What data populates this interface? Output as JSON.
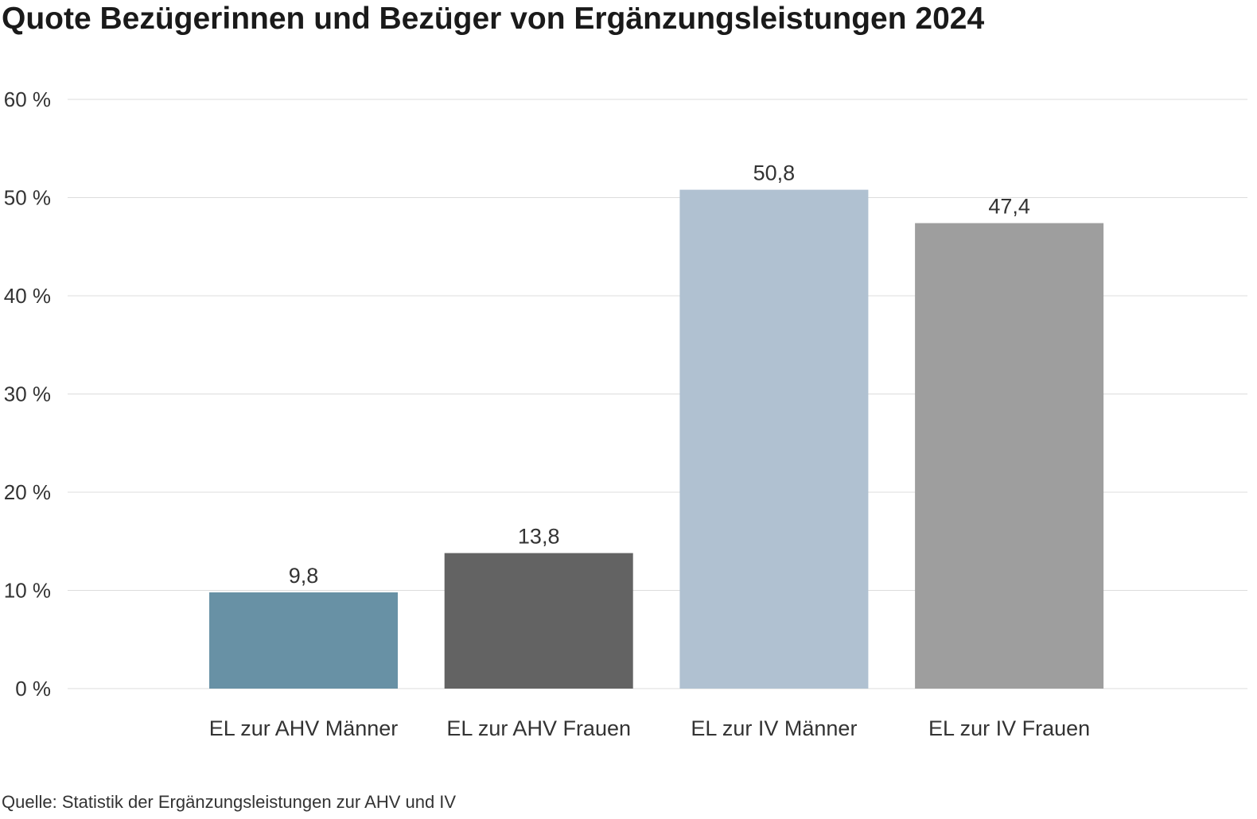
{
  "chart_data": {
    "type": "bar",
    "title": "Quote Bezügerinnen und Bezüger von Ergänzungsleistungen 2024",
    "source": "Quelle: Statistik der Ergänzungsleistungen zur AHV und IV",
    "categories": [
      "EL zur AHV Männer",
      "EL zur AHV Frauen",
      "EL zur IV Männer",
      "EL zur IV Frauen"
    ],
    "values": [
      9.8,
      13.8,
      50.8,
      47.4
    ],
    "value_labels": [
      "9,8",
      "13,8",
      "50,8",
      "47,4"
    ],
    "colors": [
      "#6891a5",
      "#636363",
      "#b0c1d1",
      "#9e9e9e"
    ],
    "yticks": [
      0,
      10,
      20,
      30,
      40,
      50,
      60
    ],
    "ytick_labels": [
      "0 %",
      "10 %",
      "20 %",
      "30 %",
      "40 %",
      "50 %",
      "60 %"
    ],
    "ylim": [
      0,
      60
    ],
    "xlabel": "",
    "ylabel": "",
    "grid": true,
    "legend": "none"
  }
}
